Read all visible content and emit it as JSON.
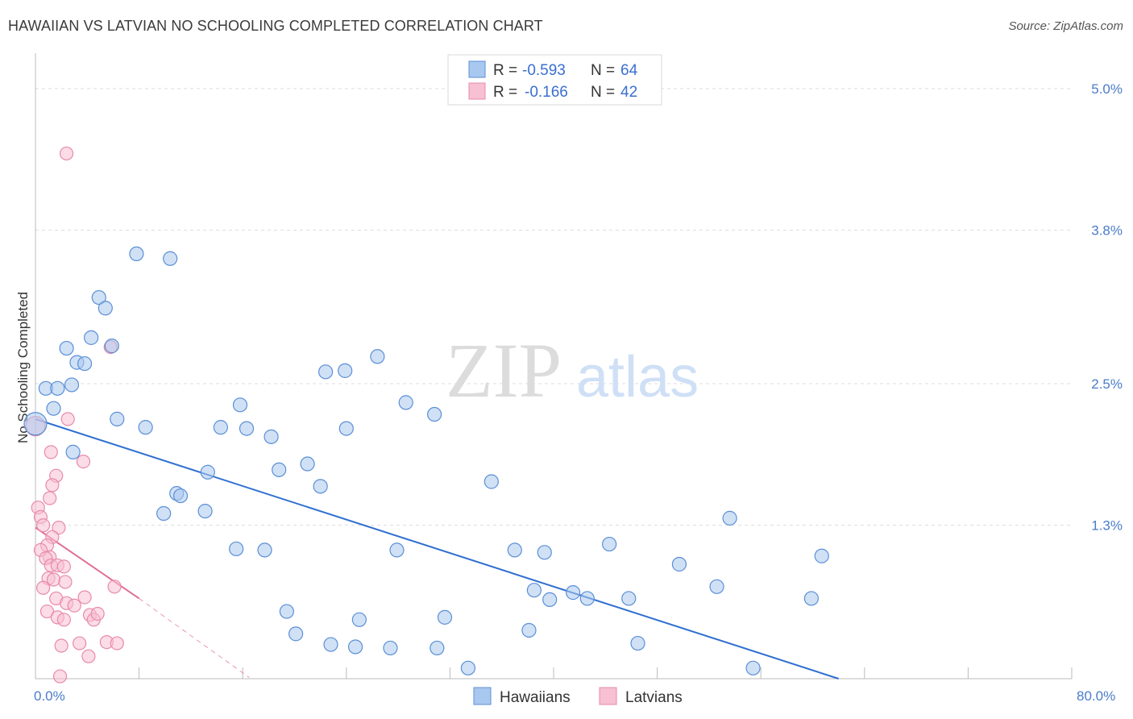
{
  "title": "HAWAIIAN VS LATVIAN NO SCHOOLING COMPLETED CORRELATION CHART",
  "source": "Source: ZipAtlas.com",
  "watermark": {
    "zip": "ZIP",
    "atlas": "atlas"
  },
  "colors": {
    "hawaiian_fill": "#a9c8ef",
    "hawaiian_stroke": "#5b8fd6",
    "hawaiian_line": "#2f6fd0",
    "latvian_fill": "#f7c0d3",
    "latvian_stroke": "#e88aa9",
    "latvian_line": "#e06d97",
    "grid": "#dddddd",
    "tick_text": "#4a7cc9"
  },
  "legend": {
    "row1": {
      "r_label": "R = ",
      "r_value": "-0.593",
      "n_label": "N = ",
      "n_value": "64"
    },
    "row2": {
      "r_label": "R = ",
      "r_value": "-0.166",
      "n_label": "N = ",
      "n_value": "42"
    }
  },
  "bottom_legend": {
    "hawaiians": "Hawaiians",
    "latvians": "Latvians"
  },
  "chart_data": {
    "type": "scatter",
    "title": "HAWAIIAN VS LATVIAN NO SCHOOLING COMPLETED CORRELATION CHART",
    "xlabel": "",
    "ylabel": "No Schooling Completed",
    "xlim": [
      0,
      80
    ],
    "ylim": [
      0,
      5.3
    ],
    "x_tick_labels": [
      "0.0%",
      "80.0%"
    ],
    "y_ticks": [
      1.3,
      2.5,
      3.8,
      5.0
    ],
    "y_tick_labels": [
      "1.3%",
      "2.5%",
      "3.8%",
      "5.0%"
    ],
    "series": [
      {
        "name": "Hawaiians",
        "r": -0.593,
        "n": 64,
        "trend": {
          "x0": 0,
          "y0": 2.2,
          "x1": 62,
          "y1": 0.0
        },
        "points": [
          [
            0.0,
            2.16
          ],
          [
            0.8,
            2.46
          ],
          [
            1.7,
            2.46
          ],
          [
            1.4,
            2.29
          ],
          [
            2.4,
            2.8
          ],
          [
            3.2,
            2.68
          ],
          [
            3.8,
            2.67
          ],
          [
            4.3,
            2.89
          ],
          [
            4.9,
            3.23
          ],
          [
            5.4,
            3.14
          ],
          [
            5.9,
            2.82
          ],
          [
            6.3,
            2.2
          ],
          [
            7.8,
            3.6
          ],
          [
            10.4,
            3.56
          ],
          [
            2.9,
            1.92
          ],
          [
            8.5,
            2.13
          ],
          [
            9.9,
            1.4
          ],
          [
            10.9,
            1.57
          ],
          [
            11.2,
            1.55
          ],
          [
            13.3,
            1.75
          ],
          [
            14.3,
            2.13
          ],
          [
            16.3,
            2.12
          ],
          [
            15.5,
            1.1
          ],
          [
            17.7,
            1.09
          ],
          [
            18.8,
            1.77
          ],
          [
            21.0,
            1.82
          ],
          [
            22.0,
            1.63
          ],
          [
            23.9,
            2.61
          ],
          [
            15.8,
            2.32
          ],
          [
            18.2,
            2.05
          ],
          [
            24.0,
            2.12
          ],
          [
            27.9,
            1.09
          ],
          [
            25.0,
            0.5
          ],
          [
            19.4,
            0.57
          ],
          [
            20.1,
            0.38
          ],
          [
            22.8,
            0.29
          ],
          [
            24.7,
            0.27
          ],
          [
            27.4,
            0.26
          ],
          [
            31.0,
            0.26
          ],
          [
            31.6,
            0.52
          ],
          [
            33.4,
            0.09
          ],
          [
            35.2,
            1.67
          ],
          [
            37.0,
            1.09
          ],
          [
            39.3,
            1.07
          ],
          [
            39.7,
            0.67
          ],
          [
            41.5,
            0.73
          ],
          [
            42.6,
            0.68
          ],
          [
            38.1,
            0.41
          ],
          [
            44.3,
            1.14
          ],
          [
            45.8,
            0.68
          ],
          [
            46.5,
            0.3
          ],
          [
            38.5,
            0.75
          ],
          [
            49.7,
            0.97
          ],
          [
            52.6,
            0.78
          ],
          [
            55.4,
            0.09
          ],
          [
            59.9,
            0.68
          ],
          [
            60.7,
            1.04
          ],
          [
            53.6,
            1.36
          ],
          [
            30.8,
            2.24
          ],
          [
            28.6,
            2.34
          ],
          [
            26.4,
            2.73
          ],
          [
            22.4,
            2.6
          ],
          [
            13.1,
            1.42
          ],
          [
            2.8,
            2.49
          ]
        ]
      },
      {
        "name": "Latvians",
        "r": -0.166,
        "n": 42,
        "trend": {
          "x0": 0,
          "y0": 1.28,
          "x1": 8.0,
          "y1": 0.68
        },
        "trend_extension": {
          "x0": 8.0,
          "y0": 0.68,
          "x1": 16.5,
          "y1": 0.01
        },
        "points": [
          [
            0.0,
            2.14
          ],
          [
            2.4,
            4.45
          ],
          [
            2.5,
            2.2
          ],
          [
            1.2,
            1.92
          ],
          [
            1.6,
            1.72
          ],
          [
            1.3,
            1.64
          ],
          [
            3.7,
            1.84
          ],
          [
            0.2,
            1.45
          ],
          [
            0.4,
            1.37
          ],
          [
            1.8,
            1.28
          ],
          [
            1.1,
            1.53
          ],
          [
            0.6,
            1.3
          ],
          [
            1.3,
            1.2
          ],
          [
            0.9,
            1.13
          ],
          [
            0.4,
            1.09
          ],
          [
            1.1,
            1.03
          ],
          [
            0.8,
            1.02
          ],
          [
            1.2,
            0.96
          ],
          [
            1.7,
            0.96
          ],
          [
            2.2,
            0.95
          ],
          [
            1.0,
            0.85
          ],
          [
            1.4,
            0.84
          ],
          [
            2.3,
            0.82
          ],
          [
            0.6,
            0.77
          ],
          [
            1.6,
            0.68
          ],
          [
            2.4,
            0.64
          ],
          [
            3.8,
            0.69
          ],
          [
            6.1,
            0.78
          ],
          [
            0.9,
            0.57
          ],
          [
            1.7,
            0.52
          ],
          [
            2.2,
            0.5
          ],
          [
            3.0,
            0.62
          ],
          [
            4.2,
            0.54
          ],
          [
            4.5,
            0.5
          ],
          [
            4.8,
            0.55
          ],
          [
            2.0,
            0.28
          ],
          [
            3.4,
            0.3
          ],
          [
            5.5,
            0.31
          ],
          [
            6.3,
            0.3
          ],
          [
            4.1,
            0.19
          ],
          [
            1.9,
            0.02
          ],
          [
            5.8,
            2.81
          ]
        ]
      }
    ]
  },
  "y_axis_title": "No Schooling Completed"
}
